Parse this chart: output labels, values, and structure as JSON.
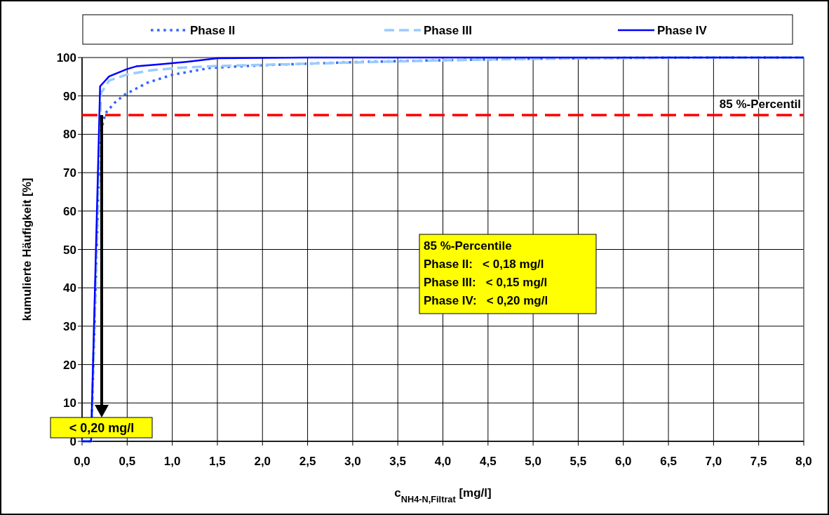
{
  "chart_data": {
    "type": "line",
    "xlabel": "c$_{NH4-N,Filtrat}$ [mg/l]",
    "ylabel": "kumulierte Häufigkeit [%]",
    "xlim": [
      0,
      8
    ],
    "ylim": [
      0,
      100
    ],
    "xticks": [
      {
        "value": 0,
        "label": "0,0"
      },
      {
        "value": 0.5,
        "label": "0,5"
      },
      {
        "value": 1,
        "label": "1,0"
      },
      {
        "value": 1.5,
        "label": "1,5"
      },
      {
        "value": 2,
        "label": "2,0"
      },
      {
        "value": 2.5,
        "label": "2,5"
      },
      {
        "value": 3,
        "label": "3,0"
      },
      {
        "value": 3.5,
        "label": "3,5"
      },
      {
        "value": 4,
        "label": "4,0"
      },
      {
        "value": 4.5,
        "label": "4,5"
      },
      {
        "value": 5,
        "label": "5,0"
      },
      {
        "value": 5.5,
        "label": "5,5"
      },
      {
        "value": 6,
        "label": "6,0"
      },
      {
        "value": 6.5,
        "label": "6,5"
      },
      {
        "value": 7,
        "label": "7,0"
      },
      {
        "value": 7.5,
        "label": "7,5"
      },
      {
        "value": 8,
        "label": "8,0"
      }
    ],
    "yticks": [
      0,
      10,
      20,
      30,
      40,
      50,
      60,
      70,
      80,
      90,
      100
    ],
    "grid": true,
    "legend": "top",
    "series": [
      {
        "name": "Phase II",
        "color": "#3366ff",
        "line_style": "dotted",
        "x": [
          0,
          0.1,
          0.2,
          0.26,
          0.36,
          0.47,
          0.6,
          0.72,
          1.0,
          1.42,
          2.0,
          3.0,
          4.0,
          5.0,
          6.0,
          7.0,
          8.0
        ],
        "values": [
          0,
          0,
          80,
          85.5,
          88.2,
          90.3,
          91.9,
          93.4,
          95.5,
          97.3,
          98,
          98.8,
          99.3,
          99.7,
          99.9,
          100,
          100
        ]
      },
      {
        "name": "Phase III",
        "color": "#99ccff",
        "line_style": "dashed",
        "x": [
          0,
          0.1,
          0.21,
          0.3,
          0.5,
          0.78,
          1.06,
          1.5,
          2.0,
          2.5,
          3.5,
          4.5,
          5.5,
          7.0,
          8.0
        ],
        "values": [
          0,
          0,
          90.7,
          94,
          95.6,
          96.7,
          97.3,
          97.8,
          98.1,
          98.4,
          99,
          99.5,
          99.8,
          100,
          100
        ]
      },
      {
        "name": "Phase IV",
        "color": "#0000ff",
        "line_style": "solid",
        "x": [
          0,
          0.1,
          0.2,
          0.3,
          0.5,
          0.6,
          0.9,
          1.17,
          1.5,
          2.5,
          8.0
        ],
        "values": [
          0,
          0,
          92.5,
          95.1,
          97,
          97.7,
          98.3,
          98.9,
          99.8,
          100,
          100
        ]
      }
    ],
    "ref_lines": [
      {
        "axis": "y",
        "value": 85,
        "label": "85 %-Percentil",
        "color": "#ff0000",
        "line_style": "dashed"
      }
    ],
    "annotations": [
      "< 0,20 mg/l",
      "85 %-Percentile",
      "Phase II:   < 0,18 mg/l",
      "Phase III:   < 0,15 mg/l",
      "Phase IV:   < 0,20 mg/l"
    ]
  }
}
